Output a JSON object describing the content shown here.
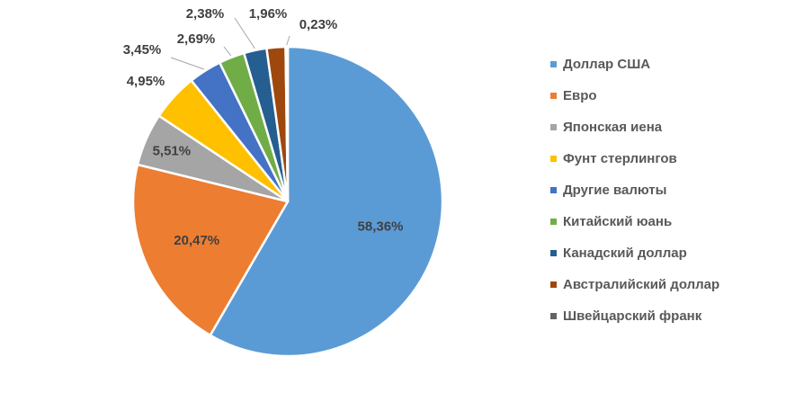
{
  "chart_data": {
    "type": "pie",
    "title": "",
    "categories": [
      "Доллар США",
      "Евро",
      "Японская иена",
      "Фунт стерлингов",
      "Другие валюты",
      "Китайский юань",
      "Канадский доллар",
      "Австралийский доллар",
      "Швейцарский франк"
    ],
    "values": [
      58.36,
      20.47,
      5.51,
      4.95,
      3.45,
      2.69,
      2.38,
      1.96,
      0.23
    ],
    "labels": [
      "58,36%",
      "20,47%",
      "5,51%",
      "4,95%",
      "3,45%",
      "2,69%",
      "2,38%",
      "1,96%",
      "0,23%"
    ],
    "colors": [
      "#5B9BD5",
      "#ED7D31",
      "#A5A5A5",
      "#FFC000",
      "#4472C4",
      "#70AD47",
      "#255E91",
      "#9E480E",
      "#636363"
    ],
    "legend_position": "right",
    "start": "12 o'clock, clockwise"
  }
}
